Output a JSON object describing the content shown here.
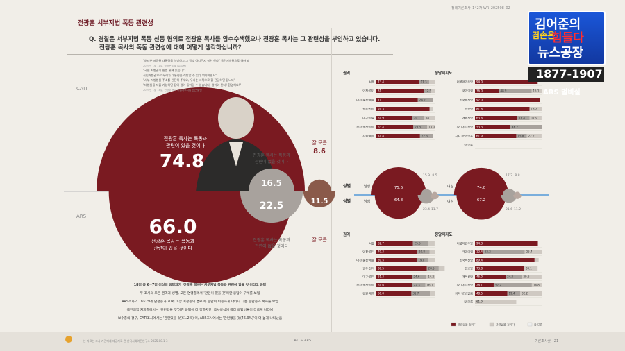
{
  "header": {
    "tag": "전광훈 서부지법 폭동 관련성",
    "question_line1": "Q. 경찰은 서부지법 폭동 선동 혐의로 전광훈 목사를 압수수색했으나 전광훈 목사는 그 관련성을 부인하고 있습니다.",
    "question_line2": "전광훈 목사의 폭동 관련성에 대해 어떻게 생각하십니까?",
    "page_header": "정례여론조사_142차   WR_202508_02"
  },
  "broadcast": {
    "logo_line1": "김어준의",
    "logo_small": "겸손은",
    "logo_red": "힘들다",
    "logo_line2": "뉴스공장",
    "years": "1877-1907",
    "ars_note": "ARS 별비실"
  },
  "quotes": [
    "\"여러분 제공권 대통령을 석방하고 그 장소 어디든지 실현 한다\" 국민저항권으로 해야 돼",
    "2025년 1월 11일, 광화문 집회 (유튜브)",
    "\"국민 저항권이 헌법 위에 있습니다.",
    "국민저항권으로 우리가 대통령을 석방할 수 있다 뭐냐하면요\"",
    "\"서부 지방법원 주소를 완전히 주세요, 우리는 그쪽으로 뭘 전달하면 됩니다\"",
    "\"대법원을 제출 가능하면 잡아 걸어 들어갈 수 있습니다. 걸어야 된다! 환영해요!\"",
    "2025년 1월 18일, 전광훈 목사 서울서부지법 인근 발언"
  ],
  "summary_lines": [
    "18명 중 6~7명 이상의 응답자가 '전광훈 목사는 서부지법 폭동과 관련이 있을 것'이라고 응답",
    "두 조사의 모든 권역과 성별, 모든 연령층에서 '관련이 있을 것'이란 응답이 우세를 보임",
    "ARS조사의 18~29세 남성층과 70세 이상 여성층의 경우 두 응답이 비등하게 나타나 다른 응답층과 복사를 보임",
    "국민의힘 지지층에서는 '관련없을 것'이란 응답이 더 강하지만, 조사방식에 따라 응답비율이 다르게 나타남",
    "보수층의 경우, CATI조사에서는 '관련있을 것(61.2%)'이, ARS조사에서는 '관련없을 것(46.9%)'이 더 높게 나타났음"
  ],
  "footer": {
    "left_note": "본 자료는 조사 기관에게 제공자료 전 한국사회여론연구소 2025.08.1-3",
    "center": "CATI & ARS",
    "right": "여론조사꽃 · 21"
  },
  "labels": {
    "cati": "CATI",
    "ars": "ARS",
    "related": "전광훈 목사는 폭동과 관련이 있을 것이다",
    "related_l1": "전광훈 목사는 폭동과",
    "related_l2": "관련이 있을 것이다",
    "unrelated_l1": "전광훈 목사는 폭동과",
    "unrelated_l2": "관련이 없을 것이다",
    "dont_know": "잘 모름",
    "region_title": "권역",
    "party_title": "정당지지도",
    "gender_title": "성별",
    "male": "남성",
    "female": "여성",
    "legend_related": "관련있을 것이다",
    "legend_unrelated": "관련없을 것이다",
    "legend_dk": "잘 모름"
  },
  "colors": {
    "related": "#7a1a21",
    "unrelated": "#a8a29d",
    "dont_know": "#8a5a4a",
    "accent": "#6a1520"
  },
  "chart_data": [
    {
      "type": "bubble",
      "title": "CATI",
      "categories": [
        "관련이 있을 것이다",
        "관련이 없을 것이다",
        "잘 모름"
      ],
      "values": [
        74.8,
        16.5,
        8.6
      ]
    },
    {
      "type": "bubble",
      "title": "ARS",
      "categories": [
        "관련이 있을 것이다",
        "관련이 없을 것이다",
        "잘 모름"
      ],
      "values": [
        66.0,
        22.5,
        11.5
      ]
    },
    {
      "type": "bar",
      "stacked": true,
      "title": "권역",
      "survey": "CATI",
      "categories": [
        "서울",
        "인천·경기",
        "대전·충청·세종",
        "광주·전라",
        "대구·경북",
        "부산·울산·경남",
        "강원·제주"
      ],
      "series": [
        {
          "name": "관련있을 것이다",
          "values": [
            73.4,
            81.1,
            71.1,
            91.3,
            61.9,
            63.4,
            74.8
          ]
        },
        {
          "name": "관련없을 것이다",
          "values": [
            17.3,
            12.3,
            26.2,
            null,
            20.1,
            23.5,
            22.6
          ]
        },
        {
          "name": "잘 모름",
          "values": [
            9.3,
            6.8,
            null,
            5.7,
            18.1,
            13.0,
            null
          ]
        }
      ]
    },
    {
      "type": "bar",
      "stacked": true,
      "title": "정당지지도",
      "survey": "CATI",
      "categories": [
        "더불어민주당",
        "국민의힘",
        "조국혁신당",
        "진보당",
        "개혁신당",
        "그외 다른 정당",
        "지지 정당 없음",
        "잘 모름"
      ],
      "series": [
        {
          "name": "관련있을 것이다",
          "values": [
            94.0,
            36.0,
            97.0,
            81.8,
            63.6,
            53.3,
            61.9,
            null
          ]
        },
        {
          "name": "관련없을 것이다",
          "values": [
            null,
            48.9,
            null,
            null,
            18.4,
            46.7,
            15.8,
            null
          ]
        },
        {
          "name": "잘 모름",
          "values": [
            null,
            15.1,
            null,
            18.2,
            17.9,
            null,
            22.2,
            null
          ]
        }
      ]
    },
    {
      "type": "bar",
      "stacked": true,
      "title": "성별",
      "survey": "CATI/ARS",
      "categories": [
        "남성",
        "여성"
      ],
      "series": [
        {
          "name": "CATI 관련있을 것이다",
          "values": [
            75.6,
            74.0
          ]
        },
        {
          "name": "CATI 관련없을 것이다",
          "values": [
            15.9,
            17.2
          ]
        },
        {
          "name": "CATI 잘 모름",
          "values": [
            8.5,
            8.8
          ]
        },
        {
          "name": "ARS 관련있을 것이다",
          "values": [
            64.8,
            67.2
          ]
        },
        {
          "name": "ARS 관련없을 것이다",
          "values": [
            23.4,
            21.6
          ]
        },
        {
          "name": "ARS 잘 모름",
          "values": [
            11.7,
            11.2
          ]
        }
      ]
    },
    {
      "type": "bar",
      "stacked": true,
      "title": "권역",
      "survey": "ARS",
      "categories": [
        "서울",
        "인천·경기",
        "대전·충청·세종",
        "광주·전라",
        "대구·경북",
        "부산·울산·경남",
        "강원·제주"
      ],
      "series": [
        {
          "name": "관련있을 것이다",
          "values": [
            62.7,
            70.3,
            69.5,
            86.5,
            61.3,
            61.6,
            60.0
          ]
        },
        {
          "name": "관련없을 것이다",
          "values": [
            25.6,
            20.8,
            19.0,
            20.5,
            24.6,
            22.3,
            31.7
          ]
        },
        {
          "name": "잘 모름",
          "values": [
            11.6,
            8.9,
            11.5,
            10.1,
            14.2,
            16.1,
            8.3
          ]
        }
      ]
    },
    {
      "type": "bar",
      "stacked": true,
      "title": "정당지지도",
      "survey": "ARS",
      "categories": [
        "더불어민주당",
        "국민의힘",
        "조국혁신당",
        "진보당",
        "개혁신당",
        "그외 다른 정당",
        "지지 정당 없음",
        "잘 모름"
      ],
      "series": [
        {
          "name": "관련있을 것이다",
          "values": [
            94.3,
            12.4,
            89.4,
            73.8,
            46.0,
            28.1,
            48.5,
            null
          ]
        },
        {
          "name": "관련없을 것이다",
          "values": [
            null,
            62.2,
            null,
            null,
            24.3,
            57.2,
            19.4,
            null
          ]
        },
        {
          "name": "잘 모름",
          "values": [
            null,
            25.4,
            6.1,
            20.1,
            29.6,
            14.8,
            32.2,
            61.9
          ]
        }
      ]
    }
  ]
}
